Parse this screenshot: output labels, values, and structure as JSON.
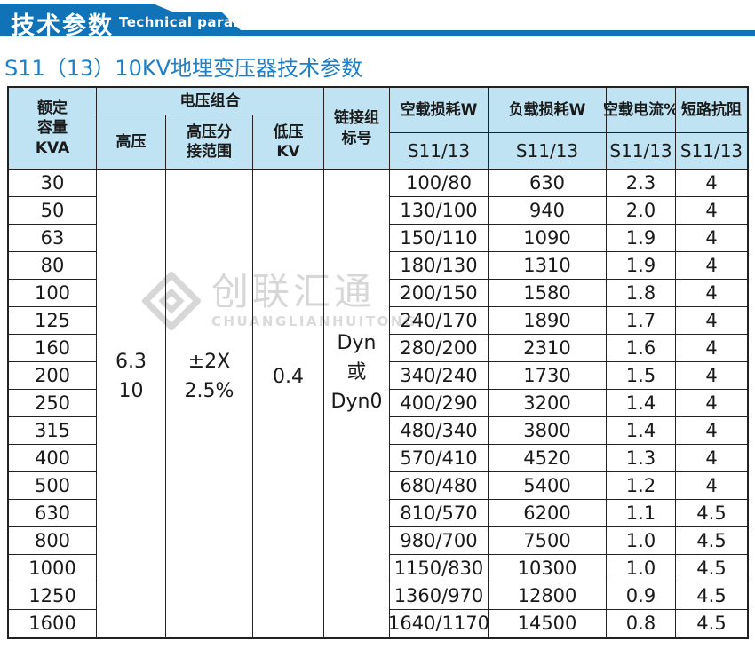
{
  "banner": {
    "title_zh": "技术参数",
    "title_en": "Technical parameter"
  },
  "page_title": "S11（13）10KV地埋变压器技术参数",
  "watermark": {
    "logo": "diamond-logo",
    "text_zh": "创联汇通",
    "text_en": "CHUANGLIANHUITONG"
  },
  "colors": {
    "banner_blue": "#1173b7",
    "title_blue": "#1e80c8",
    "header_bg": "#bfe3f3",
    "border": "#222222",
    "watermark_gray": "#d7d7d7"
  },
  "table": {
    "headers": {
      "capacity": "额定\n容量\nKVA",
      "voltage_group": "电压组合",
      "hv": "高压",
      "hv_tap": "高压分\n接范围",
      "lv": "低压\nKV",
      "vector_group": "链接组\n标号",
      "no_load_loss": "空载损耗W",
      "load_loss": "负载损耗W",
      "no_load_current": "空载电流%",
      "impedance": "短路抗阻",
      "model": "S11/13"
    },
    "merged": {
      "hv": "6.3\n10",
      "hv_tap": "±2X\n2.5%",
      "lv": "0.4",
      "vector_group": "Dyn\n或\nDyn0"
    },
    "rows": [
      {
        "kva": "30",
        "no_load": "100/80",
        "load": "630",
        "current": "2.3",
        "imp": "4"
      },
      {
        "kva": "50",
        "no_load": "130/100",
        "load": "940",
        "current": "2.0",
        "imp": "4"
      },
      {
        "kva": "63",
        "no_load": "150/110",
        "load": "1090",
        "current": "1.9",
        "imp": "4"
      },
      {
        "kva": "80",
        "no_load": "180/130",
        "load": "1310",
        "current": "1.9",
        "imp": "4"
      },
      {
        "kva": "100",
        "no_load": "200/150",
        "load": "1580",
        "current": "1.8",
        "imp": "4"
      },
      {
        "kva": "125",
        "no_load": "240/170",
        "load": "1890",
        "current": "1.7",
        "imp": "4"
      },
      {
        "kva": "160",
        "no_load": "280/200",
        "load": "2310",
        "current": "1.6",
        "imp": "4"
      },
      {
        "kva": "200",
        "no_load": "340/240",
        "load": "1730",
        "current": "1.5",
        "imp": "4"
      },
      {
        "kva": "250",
        "no_load": "400/290",
        "load": "3200",
        "current": "1.4",
        "imp": "4"
      },
      {
        "kva": "315",
        "no_load": "480/340",
        "load": "3800",
        "current": "1.4",
        "imp": "4"
      },
      {
        "kva": "400",
        "no_load": "570/410",
        "load": "4520",
        "current": "1.3",
        "imp": "4"
      },
      {
        "kva": "500",
        "no_load": "680/480",
        "load": "5400",
        "current": "1.2",
        "imp": "4"
      },
      {
        "kva": "630",
        "no_load": "810/570",
        "load": "6200",
        "current": "1.1",
        "imp": "4.5"
      },
      {
        "kva": "800",
        "no_load": "980/700",
        "load": "7500",
        "current": "1.0",
        "imp": "4.5"
      },
      {
        "kva": "1000",
        "no_load": "1150/830",
        "load": "10300",
        "current": "1.0",
        "imp": "4.5"
      },
      {
        "kva": "1250",
        "no_load": "1360/970",
        "load": "12800",
        "current": "0.9",
        "imp": "4.5"
      },
      {
        "kva": "1600",
        "no_load": "1640/1170",
        "load": "14500",
        "current": "0.8",
        "imp": "4.5"
      }
    ]
  }
}
